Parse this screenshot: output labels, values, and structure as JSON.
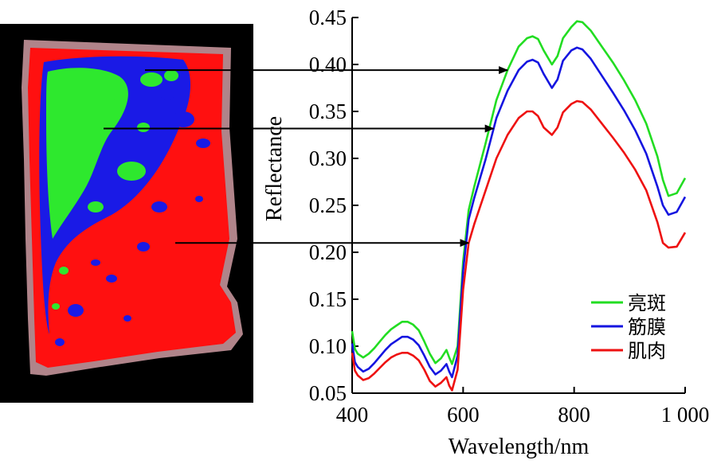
{
  "chart_data": {
    "type": "line",
    "title": "",
    "xlabel": "Wavelength/nm",
    "ylabel": "Reflectance",
    "xlim": [
      400,
      1000
    ],
    "ylim": [
      0.05,
      0.45
    ],
    "xticks": [
      {
        "value": 400,
        "label": "400"
      },
      {
        "value": 600,
        "label": "600"
      },
      {
        "value": 800,
        "label": "800"
      },
      {
        "value": 1000,
        "label": "1 000"
      }
    ],
    "yticks": [
      {
        "value": 0.05,
        "label": "0.05"
      },
      {
        "value": 0.1,
        "label": "0.10"
      },
      {
        "value": 0.15,
        "label": "0.15"
      },
      {
        "value": 0.2,
        "label": "0.20"
      },
      {
        "value": 0.25,
        "label": "0.25"
      },
      {
        "value": 0.3,
        "label": "0.30"
      },
      {
        "value": 0.35,
        "label": "0.35"
      },
      {
        "value": 0.4,
        "label": "0.40"
      },
      {
        "value": 0.45,
        "label": "0.45"
      }
    ],
    "legend_position": "bottom-right",
    "series": [
      {
        "name": "亮斑",
        "color": "#22dd22",
        "x": [
          400,
          405,
          410,
          420,
          430,
          440,
          450,
          460,
          470,
          480,
          490,
          500,
          510,
          520,
          530,
          540,
          550,
          560,
          570,
          575,
          580,
          590,
          600,
          610,
          620,
          640,
          660,
          680,
          700,
          715,
          725,
          735,
          745,
          760,
          770,
          780,
          795,
          805,
          815,
          830,
          850,
          870,
          890,
          910,
          930,
          950,
          960,
          970,
          985,
          1000
        ],
        "y": [
          0.116,
          0.097,
          0.092,
          0.088,
          0.092,
          0.098,
          0.105,
          0.112,
          0.118,
          0.122,
          0.126,
          0.126,
          0.123,
          0.117,
          0.105,
          0.092,
          0.082,
          0.087,
          0.096,
          0.088,
          0.081,
          0.1,
          0.19,
          0.245,
          0.27,
          0.315,
          0.362,
          0.394,
          0.419,
          0.428,
          0.43,
          0.427,
          0.415,
          0.4,
          0.409,
          0.428,
          0.44,
          0.446,
          0.445,
          0.436,
          0.419,
          0.402,
          0.383,
          0.362,
          0.337,
          0.302,
          0.277,
          0.26,
          0.263,
          0.279
        ]
      },
      {
        "name": "筋膜",
        "color": "#1515e0",
        "x": [
          400,
          405,
          410,
          420,
          430,
          440,
          450,
          460,
          470,
          480,
          490,
          500,
          510,
          520,
          530,
          540,
          550,
          560,
          570,
          575,
          580,
          590,
          600,
          610,
          620,
          640,
          660,
          680,
          700,
          715,
          725,
          735,
          745,
          760,
          770,
          780,
          795,
          805,
          815,
          830,
          850,
          870,
          890,
          910,
          930,
          950,
          960,
          970,
          985,
          1000
        ],
        "y": [
          0.103,
          0.083,
          0.078,
          0.073,
          0.076,
          0.082,
          0.089,
          0.096,
          0.102,
          0.106,
          0.11,
          0.11,
          0.107,
          0.101,
          0.09,
          0.078,
          0.07,
          0.074,
          0.081,
          0.073,
          0.067,
          0.09,
          0.18,
          0.235,
          0.258,
          0.298,
          0.343,
          0.372,
          0.394,
          0.403,
          0.405,
          0.402,
          0.39,
          0.375,
          0.384,
          0.404,
          0.415,
          0.418,
          0.416,
          0.406,
          0.388,
          0.37,
          0.351,
          0.33,
          0.305,
          0.27,
          0.25,
          0.24,
          0.243,
          0.259
        ]
      },
      {
        "name": "肌肉",
        "color": "#ee1111",
        "x": [
          400,
          405,
          410,
          420,
          430,
          440,
          450,
          460,
          470,
          480,
          490,
          500,
          510,
          520,
          530,
          540,
          550,
          560,
          570,
          575,
          580,
          590,
          600,
          610,
          620,
          640,
          660,
          680,
          700,
          715,
          725,
          735,
          745,
          760,
          770,
          780,
          795,
          805,
          815,
          830,
          850,
          870,
          890,
          910,
          930,
          950,
          960,
          970,
          985,
          1000
        ],
        "y": [
          0.093,
          0.074,
          0.069,
          0.064,
          0.066,
          0.071,
          0.077,
          0.083,
          0.088,
          0.091,
          0.093,
          0.093,
          0.09,
          0.085,
          0.075,
          0.063,
          0.057,
          0.061,
          0.067,
          0.058,
          0.053,
          0.075,
          0.16,
          0.21,
          0.23,
          0.265,
          0.3,
          0.325,
          0.343,
          0.35,
          0.35,
          0.345,
          0.333,
          0.325,
          0.333,
          0.349,
          0.358,
          0.361,
          0.36,
          0.352,
          0.337,
          0.322,
          0.306,
          0.288,
          0.266,
          0.232,
          0.21,
          0.205,
          0.206,
          0.221
        ]
      }
    ],
    "annotations": [
      {
        "from_region": "亮斑",
        "target_series": "亮斑",
        "target_x": 680
      },
      {
        "from_region": "筋膜",
        "target_series": "筋膜",
        "target_x": 655
      },
      {
        "from_region": "肌肉",
        "target_series": "肌肉",
        "target_x": 610
      }
    ]
  }
}
